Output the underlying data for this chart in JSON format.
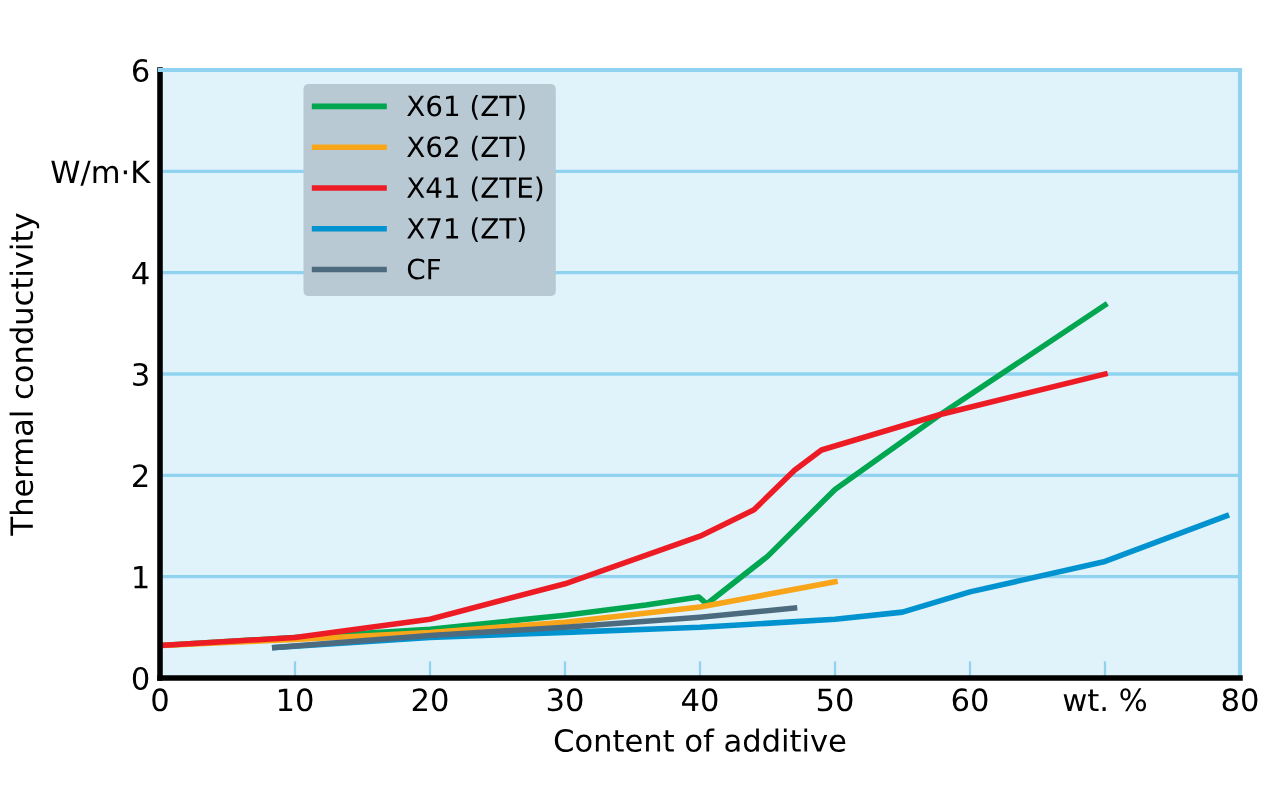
{
  "chart_data": {
    "type": "line",
    "xlabel": "Content of additive",
    "ylabel": "Thermal conductivity",
    "xlim": [
      0,
      80
    ],
    "ylim": [
      0,
      6
    ],
    "xticks": [
      0,
      10,
      20,
      30,
      40,
      50,
      60,
      {
        "value": 70,
        "label": "wt. %"
      },
      80
    ],
    "yticks": [
      0,
      1,
      2,
      3,
      4,
      {
        "value": 5,
        "label": "W/m·K"
      },
      6
    ],
    "grid": "y",
    "legend": "top left",
    "marker": "none",
    "line_style": "solid",
    "series": [
      {
        "name": "X61 (ZT)",
        "color": "#00a650",
        "x": [
          0,
          10,
          20,
          30,
          36,
          39.9,
          40.5,
          45,
          50,
          57.8,
          70
        ],
        "values": [
          0.32,
          0.4,
          0.48,
          0.62,
          0.72,
          0.8,
          0.73,
          1.2,
          1.86,
          2.6,
          3.68
        ]
      },
      {
        "name": "X62 (ZT)",
        "color": "#f9a51a",
        "x": [
          0,
          10,
          20,
          30,
          40,
          50
        ],
        "values": [
          0.32,
          0.38,
          0.45,
          0.55,
          0.7,
          0.95
        ]
      },
      {
        "name": "X41 (ZTE)",
        "color": "#ed1c24",
        "x": [
          0,
          10,
          20,
          30,
          40,
          44,
          47,
          49,
          57.8,
          70
        ],
        "values": [
          0.32,
          0.4,
          0.58,
          0.93,
          1.4,
          1.66,
          2.05,
          2.25,
          2.6,
          3.0
        ]
      },
      {
        "name": "X71 (ZT)",
        "color": "#0093d0",
        "x": [
          8.5,
          20,
          30,
          40,
          50,
          55,
          60,
          70,
          79
        ],
        "values": [
          0.3,
          0.4,
          0.45,
          0.5,
          0.58,
          0.65,
          0.85,
          1.15,
          1.6
        ]
      },
      {
        "name": "CF",
        "color": "#4d6b7f",
        "x": [
          8.5,
          20,
          30,
          40,
          47
        ],
        "values": [
          0.3,
          0.42,
          0.5,
          0.6,
          0.69
        ]
      }
    ]
  }
}
